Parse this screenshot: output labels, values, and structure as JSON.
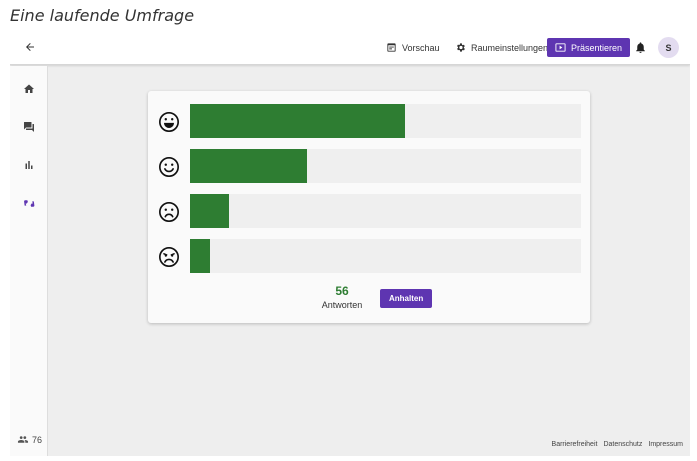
{
  "caption": "Eine laufende Umfrage",
  "header": {
    "preview_label": "Vorschau",
    "settings_label": "Raumeinstellungen",
    "present_label": "Präsentieren",
    "avatar_initial": "S"
  },
  "sidebar": {
    "items": [
      {
        "icon": "home-icon"
      },
      {
        "icon": "chat-icon"
      },
      {
        "icon": "bar-chart-icon"
      },
      {
        "icon": "feedback-icon",
        "active": true
      }
    ],
    "users_count": "76"
  },
  "survey": {
    "results": [
      {
        "icon": "very-happy-face-icon",
        "fraction": 0.55
      },
      {
        "icon": "happy-face-icon",
        "fraction": 0.3
      },
      {
        "icon": "unhappy-face-icon",
        "fraction": 0.1
      },
      {
        "icon": "very-unhappy-face-icon",
        "fraction": 0.05
      }
    ],
    "answer_count": "56",
    "answer_label": "Antworten",
    "stop_label": "Anhalten"
  },
  "footer": {
    "accessibility": "Barrierefreiheit",
    "privacy": "Datenschutz",
    "imprint": "Impressum"
  },
  "colors": {
    "accent": "#5e35b1",
    "bar": "#2e7d32",
    "track": "#efefef"
  }
}
